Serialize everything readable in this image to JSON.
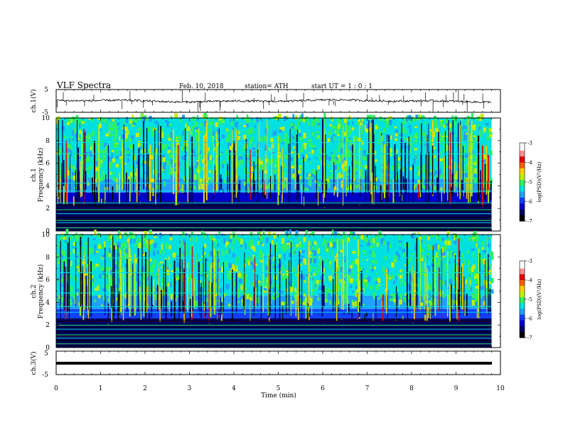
{
  "header": {
    "title": "VLF  Spectra",
    "date": "Feb. 10, 2018",
    "station": "station= ATH",
    "start": "start  UT  =    1  : 0   : 1"
  },
  "chart_data": [
    {
      "type": "line",
      "name": "ch1-waveform",
      "ylabel": "ch.1(V)",
      "ylim": [
        -5,
        5
      ],
      "yticks": [
        "5",
        "-5"
      ],
      "xlim": [
        0,
        10
      ]
    },
    {
      "type": "heatmap",
      "name": "ch1-spectrogram",
      "ylabel": "ch.1\nFrequency (kHz)",
      "ylabel_lines": [
        "ch.1",
        "Frequency (kHz)"
      ],
      "ylim": [
        0,
        10
      ],
      "yticks": [
        "0",
        "2",
        "4",
        "6",
        "8",
        "10"
      ],
      "xlim": [
        0,
        10
      ],
      "data_end_min": 9.8,
      "colorbar": {
        "label": "log(PSD)(V²/Hz)",
        "range": [
          -7,
          -3
        ],
        "ticks": [
          "-3",
          "-4",
          "-5",
          "-6",
          "-7"
        ]
      }
    },
    {
      "type": "heatmap",
      "name": "ch2-spectrogram",
      "ylabel": "ch.2\nFrequency (kHz)",
      "ylabel_lines": [
        "ch.2",
        "Frequency (kHz)"
      ],
      "ylim": [
        0,
        10
      ],
      "yticks": [
        "0",
        "2",
        "4",
        "6",
        "8",
        "10"
      ],
      "xlim": [
        0,
        10
      ],
      "data_end_min": 9.8,
      "colorbar": {
        "label": "log(PSD)(V²/Hz)",
        "range": [
          -7,
          -3
        ],
        "ticks": [
          "-3",
          "-4",
          "-5",
          "-6",
          "-7"
        ]
      }
    },
    {
      "type": "line",
      "name": "ch3-waveform",
      "ylabel": "ch.3(V)",
      "ylim": [
        -5,
        5
      ],
      "yticks": [
        "5",
        "-5"
      ],
      "xlim": [
        0,
        10
      ],
      "xlabel": "Time  (min)",
      "xticks": [
        "0",
        "1",
        "2",
        "3",
        "4",
        "5",
        "6",
        "7",
        "8",
        "9",
        "10"
      ]
    }
  ],
  "colors": {
    "axis": "#000000",
    "waveform": "#000000",
    "colormap": [
      "#000000",
      "#000060",
      "#0000c8",
      "#1040ff",
      "#20a0ff",
      "#00e0e0",
      "#30f060",
      "#c0f000",
      "#ffd000",
      "#ff6000",
      "#e00000",
      "#ffffff"
    ]
  }
}
